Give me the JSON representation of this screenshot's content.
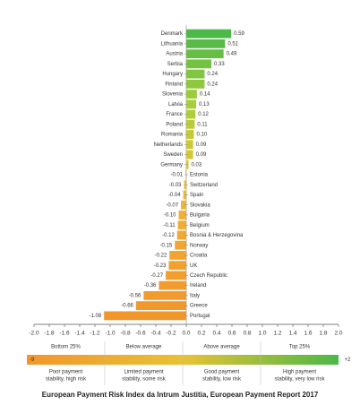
{
  "chart_data": {
    "type": "bar",
    "orientation": "horizontal",
    "categories": [
      "Denmark",
      "Lithuania",
      "Austria",
      "Serbia",
      "Hungary",
      "Finland",
      "Slovenia",
      "Latvia",
      "France",
      "Poland",
      "Romania",
      "Netherlands",
      "Sweden",
      "Germany",
      "Estonia",
      "Switzerland",
      "Spain",
      "Slovakia",
      "Bulgaria",
      "Belgium",
      "Bosnia & Herzegovina",
      "Norway",
      "Croatia",
      "UK",
      "Czech Republic",
      "Ireland",
      "Italy",
      "Greece",
      "Portugal"
    ],
    "values": [
      0.59,
      0.51,
      0.49,
      0.33,
      0.24,
      0.24,
      0.14,
      0.13,
      0.12,
      0.11,
      0.1,
      0.09,
      0.09,
      0.03,
      -0.01,
      -0.03,
      -0.04,
      -0.07,
      -0.1,
      -0.11,
      -0.12,
      -0.15,
      -0.22,
      -0.23,
      -0.27,
      -0.36,
      -0.56,
      -0.66,
      -1.08
    ],
    "value_labels": [
      "0.59",
      "0.51",
      "0.49",
      "0.33",
      "0.24",
      "0.24",
      "0.14",
      "0.13",
      "0.12",
      "0.11",
      "0.10",
      "0.09",
      "0.09",
      "0.03",
      "-0.01",
      "-0.03",
      "-0.04",
      "-0.07",
      "-0.10",
      "-0.11",
      "-0.12",
      "-0.15",
      "-0.22",
      "-0.23",
      "-0.27",
      "-0.36",
      "-0.56",
      "-0.66",
      "-1.08"
    ],
    "gradient_colors": [
      "#4cb848",
      "#a8cf3a",
      "#e8c234",
      "#f2a531",
      "#f1962b"
    ],
    "xlim": [
      -2,
      2
    ],
    "xticks": [
      {
        "value": -2,
        "label": "-2.0"
      },
      -1.8,
      -1.6,
      -1.4,
      -1.2,
      {
        "value": -1,
        "label": "-1.0"
      },
      -0.8,
      -0.6,
      -0.4,
      -0.2,
      {
        "value": 0,
        "label": "0.0"
      },
      0.2,
      0.4,
      0.6,
      0.8,
      {
        "value": 1,
        "label": "1.0"
      },
      1.2,
      1.4,
      1.6,
      1.8,
      {
        "value": 2,
        "label": "2.0"
      }
    ],
    "legend": {
      "low_end": "-9",
      "high_end": "+2",
      "headers": [
        "Bottom 25%",
        "Below average",
        "Above average",
        "Top 25%"
      ],
      "descriptions": [
        [
          "Poor payment",
          "stability, high risk"
        ],
        [
          "Limited payment",
          "stability, some risk"
        ],
        [
          "Good payment",
          "stability, low risk"
        ],
        [
          "High payment",
          "stability, very low risk"
        ]
      ]
    },
    "caption": "European Payment Risk Index da Intrum Justitia, European Payment Report 2017"
  }
}
